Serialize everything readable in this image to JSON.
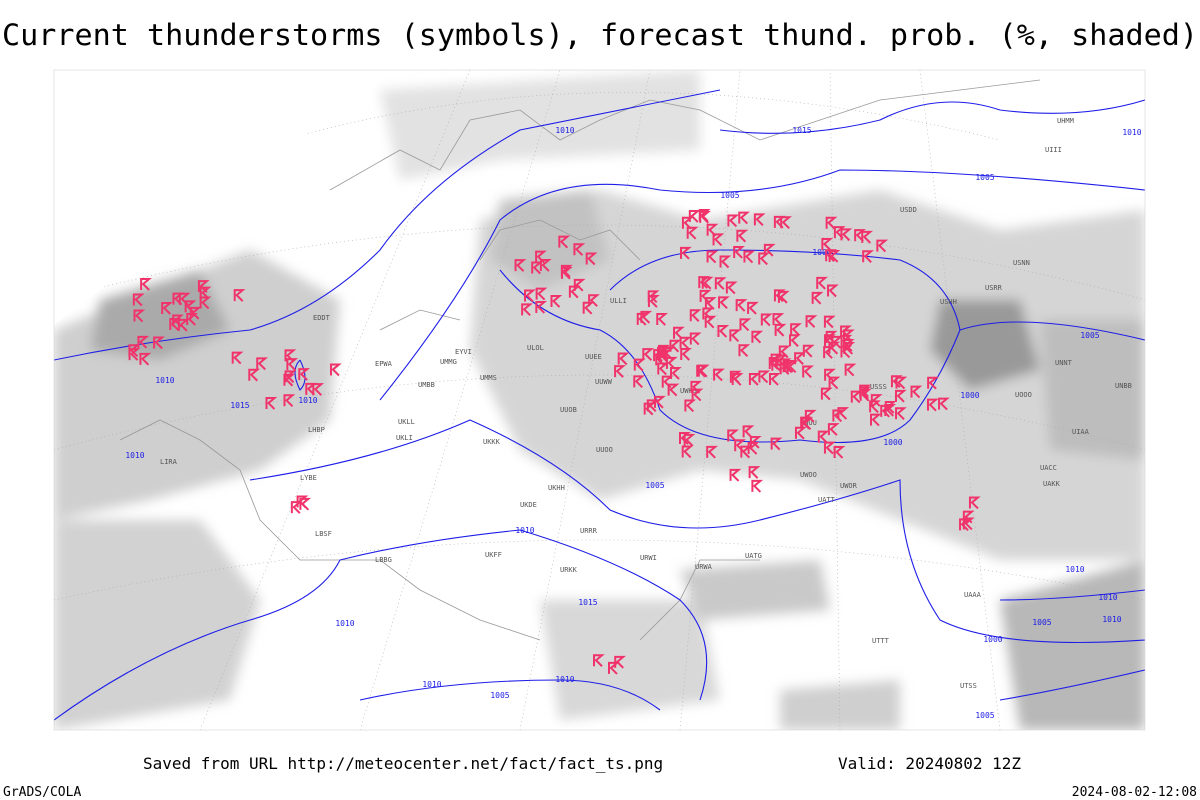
{
  "header": {
    "title": "Current thunderstorms (symbols), forecast thund. prob. (%, shaded)"
  },
  "map": {
    "isobar_labels": [
      "1010",
      "1015",
      "1005",
      "1010",
      "1000",
      "1005",
      "1010",
      "1015",
      "1010",
      "1010",
      "1010",
      "1005",
      "1000",
      "1005",
      "1000",
      "1005",
      "1010",
      "1015",
      "1010",
      "1010",
      "1005",
      "1000",
      "1010",
      "1005",
      "1010",
      "1010"
    ],
    "stations": [
      "EDDT",
      "EPWA",
      "EYVI",
      "LHBP",
      "LIRA",
      "LYBE",
      "LBSF",
      "LBBG",
      "ULLI",
      "ULOL",
      "UMMS",
      "UMMG",
      "UMBB",
      "UKLL",
      "UKLI",
      "UKKK",
      "UKHH",
      "UKDE",
      "UKFF",
      "UUEE",
      "UUWW",
      "UUOB",
      "UUOO",
      "URRR",
      "URKK",
      "URWI",
      "URWA",
      "UATG",
      "UATT",
      "UWOO",
      "UWOR",
      "UWUU",
      "UWKS",
      "USSS",
      "USNN",
      "USRR",
      "USHH",
      "UNNT",
      "UNBB",
      "UIAA",
      "UIII",
      "UHMM",
      "UTTT",
      "UTSS",
      "UAAA",
      "UACC",
      "UAKK",
      "UOOO",
      "USDD"
    ]
  },
  "footer": {
    "source": "Saved from URL http://meteocenter.net/fact/fact_ts.png",
    "valid": "Valid: 20240802 12Z",
    "software": "GrADS/COLA",
    "timestamp": "2024-08-02-12:08"
  }
}
